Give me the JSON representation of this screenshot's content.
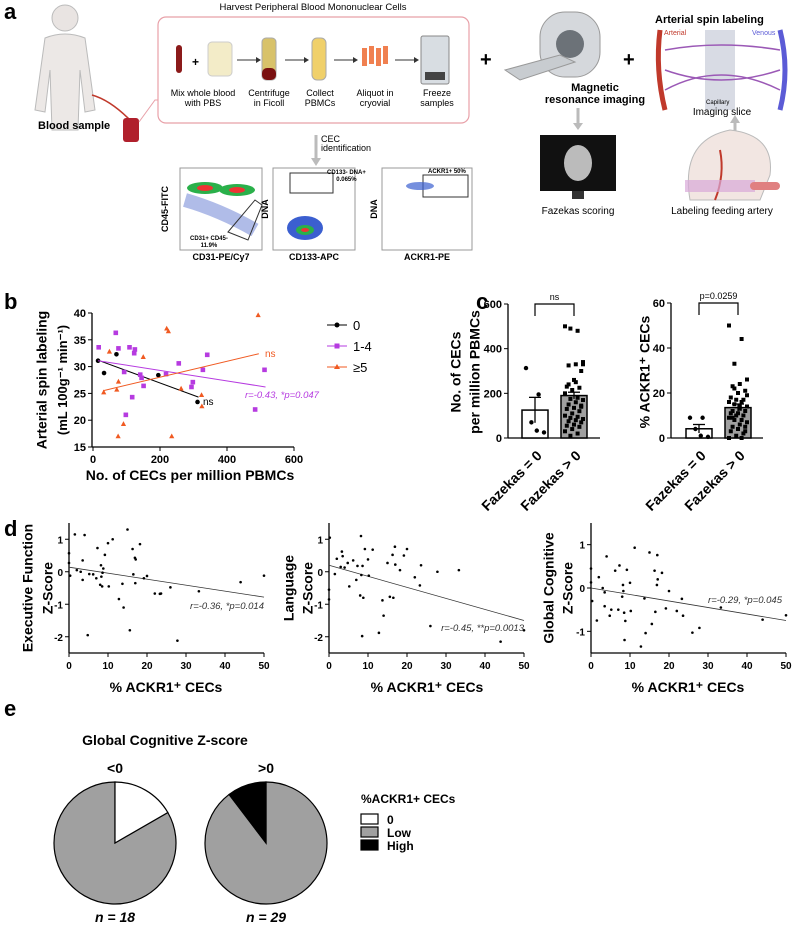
{
  "panel_a": {
    "letter": "a",
    "harvest_title": "Harvest Peripheral Blood Mononuclear Cells",
    "blood_sample": "Blood sample",
    "steps": [
      {
        "line1": "Mix whole blood",
        "line2": "with PBS"
      },
      {
        "line1": "Centrifuge",
        "line2": "in Ficoll"
      },
      {
        "line1": "Collect",
        "line2": "PBMCs"
      },
      {
        "line1": "Aliquot in",
        "line2": "cryovial"
      },
      {
        "line1": "Freeze",
        "line2": "samples"
      }
    ],
    "plus": "+",
    "cec_line1": "CEC",
    "cec_line2": "identification",
    "flow": [
      {
        "ylabel": "CD45-FITC",
        "xlabel": "CD31-PE/Cy7",
        "gate": "CD31+ CD45-",
        "gate_pct": "11.9%"
      },
      {
        "ylabel": "DNA",
        "xlabel": "CD133-APC",
        "gate": "CD133- DNA+",
        "gate_pct": "0.065%"
      },
      {
        "ylabel": "DNA",
        "xlabel": "ACKR1-PE",
        "gate": "ACKR1+ 50%"
      }
    ],
    "mri_line1": "Magnetic",
    "mri_line2": "resonance imaging",
    "fazekas_scoring": "Fazekas scoring",
    "asl_title": "Arterial spin labeling",
    "arterial": "Arterial",
    "venous": "Venous",
    "capillary": "Capillary",
    "imaging_slice": "Imaging slice",
    "labeling_artery": "Labeling feeding artery"
  },
  "labels": {
    "b": "b",
    "c": "c",
    "d": "d",
    "e": "e",
    "b_ylabel1": "Arterial spin labeling",
    "b_ylabel2": "(mL 100g⁻¹ min⁻¹)",
    "b_xlabel": "No. of CECs per million PBMCs",
    "c_ylabel_left1": "No. of CECs",
    "c_ylabel_left2": "per million PBMCs",
    "c_ylabel_right": "% ACKR1⁺ CECs",
    "c_cat1": "Fazekas = 0",
    "c_cat2": "Fazekas > 0",
    "d_y1a": "Executive Function",
    "d_y1b": "Z-Score",
    "d_y2a": "Language",
    "d_y2b": "Z-Score",
    "d_y3a": "Global Cognitive",
    "d_y3b": "Z-Score",
    "d_xlabel": "% ACKR1⁺ CECs",
    "e_title": "Global Cognitive Z-score",
    "e_group1": "<0",
    "e_group2": ">0",
    "e_n1": "n = 18",
    "e_n2": "n = 29",
    "e_legend_title": "%ACKR1+ CECs"
  },
  "colors": {
    "group0": "#000000",
    "group14": "#b63be0",
    "group5": "#f05a22",
    "pie_zero": "#ffffff",
    "pie_low": "#a0a0a0",
    "pie_high": "#000000",
    "harvest_box": "#e8a0a8"
  },
  "chart_data": [
    {
      "id": "b",
      "type": "scatter",
      "xlabel": "No. of CECs per million PBMCs",
      "ylabel": "Arterial spin labeling (mL 100g-1 min-1)",
      "xlim": [
        0,
        600
      ],
      "ylim": [
        15,
        40
      ],
      "xticks": [
        0,
        200,
        400,
        600
      ],
      "yticks": [
        15,
        20,
        25,
        30,
        35,
        40
      ],
      "legend_placement": "right",
      "series": [
        {
          "name": "0",
          "marker": "circle",
          "color": "#000000",
          "points": [
            [
              15,
              31.1
            ],
            [
              33,
              28.8
            ],
            [
              70,
              32.3
            ],
            [
              195,
              28.4
            ],
            [
              312,
              23.4
            ]
          ],
          "fit": [
            [
              15,
              31.2
            ],
            [
              315,
              24.3
            ]
          ],
          "annotation": "ns"
        },
        {
          "name": "1-4",
          "marker": "square",
          "color": "#b63be0",
          "points": [
            [
              17,
              33.6
            ],
            [
              68,
              36.3
            ],
            [
              76,
              33.4
            ],
            [
              93,
              29
            ],
            [
              98,
              21
            ],
            [
              109,
              33.6
            ],
            [
              117,
              24.3
            ],
            [
              123,
              32.5
            ],
            [
              125,
              33.2
            ],
            [
              141,
              28.5
            ],
            [
              145,
              27.9
            ],
            [
              151,
              26.4
            ],
            [
              218,
              28.6
            ],
            [
              256,
              30.6
            ],
            [
              294,
              26.2
            ],
            [
              298,
              27.1
            ],
            [
              328,
              29.4
            ],
            [
              341,
              32.2
            ],
            [
              484,
              22
            ],
            [
              512,
              29.4
            ]
          ],
          "fit": [
            [
              15,
              31.1
            ],
            [
              515,
              26.2
            ]
          ],
          "annotation": "r=-0.43, *p=0.047"
        },
        {
          "name": "≥5",
          "marker": "triangle",
          "color": "#f05a22",
          "points": [
            [
              32,
              25.2
            ],
            [
              49,
              32.8
            ],
            [
              71,
              25.7
            ],
            [
              75,
              17
            ],
            [
              76,
              27.2
            ],
            [
              91,
              19.3
            ],
            [
              150,
              31.8
            ],
            [
              220,
              37.1
            ],
            [
              225,
              36.6
            ],
            [
              235,
              17
            ],
            [
              263,
              25.9
            ],
            [
              324,
              24.7
            ],
            [
              325,
              22.6
            ],
            [
              493,
              39.6
            ]
          ],
          "fit": [
            [
              30,
              25.5
            ],
            [
              495,
              32.4
            ]
          ],
          "annotation": "ns"
        }
      ]
    },
    {
      "id": "c_left",
      "type": "bar",
      "categories": [
        "Fazekas = 0",
        "Fazekas > 0"
      ],
      "values": [
        125,
        190
      ],
      "sem": [
        57,
        15
      ],
      "ylim": [
        0,
        600
      ],
      "yticks": [
        0,
        200,
        400,
        600
      ],
      "ylabel": "No. of CECs per million PBMCs",
      "significance": "ns",
      "points": [
        [
          313,
          195,
          70,
          25,
          33
        ],
        [
          500,
          480,
          490,
          340,
          330,
          325,
          300,
          260,
          230,
          225,
          215,
          200,
          180,
          175,
          170,
          160,
          150,
          140,
          135,
          130,
          120,
          110,
          100,
          95,
          90,
          85,
          80,
          75,
          70,
          60,
          55,
          50,
          40,
          30,
          20,
          10,
          330,
          250,
          240,
          145
        ]
      ]
    },
    {
      "id": "c_right",
      "type": "bar",
      "categories": [
        "Fazekas = 0",
        "Fazekas > 0"
      ],
      "values": [
        4.1,
        13.5
      ],
      "sem": [
        1.9,
        1.6
      ],
      "ylim": [
        0,
        60
      ],
      "yticks": [
        0,
        20,
        40,
        60
      ],
      "ylabel": "% ACKR1+ CECs",
      "significance": "p=0.0259",
      "points": [
        [
          9,
          9,
          4,
          0.5,
          1
        ],
        [
          50,
          44,
          33,
          26,
          24,
          23,
          21,
          20,
          18,
          17,
          17,
          16,
          16,
          15,
          14,
          13,
          12,
          12,
          11,
          11,
          10,
          10,
          9,
          8,
          8,
          7,
          6,
          5,
          5,
          4,
          3,
          2,
          1,
          0,
          0,
          22,
          19,
          14,
          9,
          3
        ]
      ]
    },
    {
      "id": "d1",
      "type": "scatter",
      "xlabel": "% ACKR1+ CECs",
      "ylabel": "Executive Function Z-Score",
      "xlim": [
        0,
        50
      ],
      "ylim": [
        -2.5,
        1.5
      ],
      "xticks": [
        0,
        10,
        20,
        30,
        40,
        50
      ],
      "yticks": [
        -2,
        -1,
        0,
        1
      ],
      "fit": [
        [
          0,
          0.14
        ],
        [
          50,
          -0.78
        ]
      ],
      "annotation": "r=-0.36, *p=0.014",
      "points": [
        [
          0,
          0.57
        ],
        [
          0,
          0.27
        ],
        [
          0.3,
          -0.12
        ],
        [
          1.5,
          1.15
        ],
        [
          2,
          0.05
        ],
        [
          3,
          0
        ],
        [
          3.5,
          0.35
        ],
        [
          3.5,
          -0.25
        ],
        [
          4,
          1.13
        ],
        [
          4.8,
          -1.95
        ],
        [
          5.2,
          -0.07
        ],
        [
          6.2,
          -0.08
        ],
        [
          7,
          -0.2
        ],
        [
          7.3,
          0.73
        ],
        [
          8,
          -0.4
        ],
        [
          8.2,
          0.2
        ],
        [
          8.3,
          -0.15
        ],
        [
          8.5,
          -0.45
        ],
        [
          8.6,
          -0.03
        ],
        [
          8.8,
          0.1
        ],
        [
          9.2,
          0.52
        ],
        [
          10,
          0.88
        ],
        [
          10.2,
          -0.45
        ],
        [
          11.2,
          1.0
        ],
        [
          12.8,
          -0.84
        ],
        [
          13.7,
          -0.37
        ],
        [
          14,
          -1.1
        ],
        [
          15,
          1.3
        ],
        [
          15.6,
          -1.8
        ],
        [
          16.3,
          0.7
        ],
        [
          16.5,
          -0.08
        ],
        [
          16.9,
          0.43
        ],
        [
          17,
          -0.35
        ],
        [
          17.1,
          0.38
        ],
        [
          18.2,
          0.85
        ],
        [
          19.2,
          -0.2
        ],
        [
          20,
          -0.13
        ],
        [
          22,
          -0.67
        ],
        [
          23.3,
          -0.68
        ],
        [
          23.6,
          -0.67
        ],
        [
          26,
          -0.48
        ],
        [
          27.8,
          -2.12
        ],
        [
          33.3,
          -0.6
        ],
        [
          44,
          -0.32
        ],
        [
          50,
          -0.12
        ]
      ]
    },
    {
      "id": "d2",
      "type": "scatter",
      "xlabel": "% ACKR1+ CECs",
      "ylabel": "Language Z-Score",
      "xlim": [
        0,
        50
      ],
      "ylim": [
        -2.5,
        1.5
      ],
      "xticks": [
        0,
        10,
        20,
        30,
        40,
        50
      ],
      "yticks": [
        -2,
        -1,
        0,
        1
      ],
      "fit": [
        [
          0,
          0.2
        ],
        [
          50,
          -1.5
        ]
      ],
      "annotation": "r=-0.45, **p=0.0013",
      "points": [
        [
          0,
          -0.55
        ],
        [
          0,
          -0.85
        ],
        [
          0.2,
          1.05
        ],
        [
          1.5,
          -0.07
        ],
        [
          2,
          0.4
        ],
        [
          3,
          0.15
        ],
        [
          3.3,
          0.62
        ],
        [
          3.5,
          0.48
        ],
        [
          4,
          0.13
        ],
        [
          4.8,
          0.27
        ],
        [
          5.2,
          -0.45
        ],
        [
          6.2,
          0.35
        ],
        [
          7,
          -0.25
        ],
        [
          7.3,
          0.18
        ],
        [
          8,
          -0.73
        ],
        [
          8.2,
          1.1
        ],
        [
          8.3,
          -0.1
        ],
        [
          8.5,
          -1.98
        ],
        [
          8.6,
          0.18
        ],
        [
          8.8,
          -0.8
        ],
        [
          9.2,
          0.7
        ],
        [
          10,
          0.38
        ],
        [
          10.2,
          -0.12
        ],
        [
          11.2,
          0.68
        ],
        [
          12.8,
          -1.88
        ],
        [
          13.7,
          -0.88
        ],
        [
          14,
          -1.35
        ],
        [
          15,
          0.27
        ],
        [
          15.6,
          -0.77
        ],
        [
          16.3,
          0.52
        ],
        [
          16.5,
          -0.8
        ],
        [
          16.9,
          0.77
        ],
        [
          17,
          0.22
        ],
        [
          18.2,
          0.05
        ],
        [
          19.2,
          0.5
        ],
        [
          20,
          0.7
        ],
        [
          22,
          -0.17
        ],
        [
          23.3,
          -0.42
        ],
        [
          23.6,
          0.2
        ],
        [
          26,
          -1.67
        ],
        [
          27.8,
          0.0
        ],
        [
          33.3,
          0.05
        ],
        [
          44,
          -2.15
        ],
        [
          50,
          -1.8
        ]
      ]
    },
    {
      "id": "d3",
      "type": "scatter",
      "xlabel": "% ACKR1+ CECs",
      "ylabel": "Global Cognitive Z-Score",
      "xlim": [
        0,
        50
      ],
      "ylim": [
        -1.5,
        1.5
      ],
      "xticks": [
        0,
        10,
        20,
        30,
        40,
        50
      ],
      "yticks": [
        -1,
        0,
        1
      ],
      "fit": [
        [
          0,
          0.0
        ],
        [
          50,
          -0.75
        ]
      ],
      "annotation": "r=-0.29, *p=0.045",
      "points": [
        [
          0,
          0.45
        ],
        [
          0,
          0.13
        ],
        [
          0.3,
          -0.3
        ],
        [
          1.5,
          -0.75
        ],
        [
          2,
          0.25
        ],
        [
          3,
          0
        ],
        [
          3.5,
          -0.1
        ],
        [
          3.5,
          -0.42
        ],
        [
          4,
          0.73
        ],
        [
          4.8,
          -0.64
        ],
        [
          5.2,
          -0.5
        ],
        [
          6.2,
          0.4
        ],
        [
          7,
          -0.5
        ],
        [
          7.3,
          0.52
        ],
        [
          8,
          -0.2
        ],
        [
          8.2,
          0.07
        ],
        [
          8.3,
          -0.07
        ],
        [
          8.5,
          -0.57
        ],
        [
          8.6,
          -1.2
        ],
        [
          8.8,
          -0.76
        ],
        [
          9.2,
          0.42
        ],
        [
          10,
          0.12
        ],
        [
          10.2,
          -0.53
        ],
        [
          11.2,
          0.93
        ],
        [
          12.8,
          -1.35
        ],
        [
          13.7,
          -0.24
        ],
        [
          14,
          -1.04
        ],
        [
          15,
          0.82
        ],
        [
          15.6,
          -0.83
        ],
        [
          16.3,
          0.4
        ],
        [
          16.5,
          -0.55
        ],
        [
          16.9,
          0.07
        ],
        [
          17,
          0.76
        ],
        [
          17.1,
          0.2
        ],
        [
          18.2,
          0.35
        ],
        [
          19.2,
          -0.47
        ],
        [
          20,
          -0.07
        ],
        [
          22,
          -0.53
        ],
        [
          23.3,
          -0.25
        ],
        [
          23.6,
          -0.64
        ],
        [
          26,
          -1.03
        ],
        [
          27.8,
          -0.92
        ],
        [
          33.3,
          -0.45
        ],
        [
          44,
          -0.73
        ],
        [
          50,
          -0.63
        ]
      ]
    },
    {
      "id": "e",
      "type": "pie",
      "title": "Global Cognitive Z-score",
      "legend_title": "%ACKR1+ CECs",
      "legend": [
        "0",
        "Low",
        "High"
      ],
      "legend_placement": "right",
      "pies": [
        {
          "label": "<0",
          "n": 18,
          "slices": [
            {
              "name": "0",
              "value": 3
            },
            {
              "name": "Low",
              "value": 15
            },
            {
              "name": "High",
              "value": 0
            }
          ]
        },
        {
          "label": ">0",
          "n": 29,
          "slices": [
            {
              "name": "0",
              "value": 0
            },
            {
              "name": "Low",
              "value": 26
            },
            {
              "name": "High",
              "value": 3
            }
          ]
        }
      ]
    }
  ]
}
